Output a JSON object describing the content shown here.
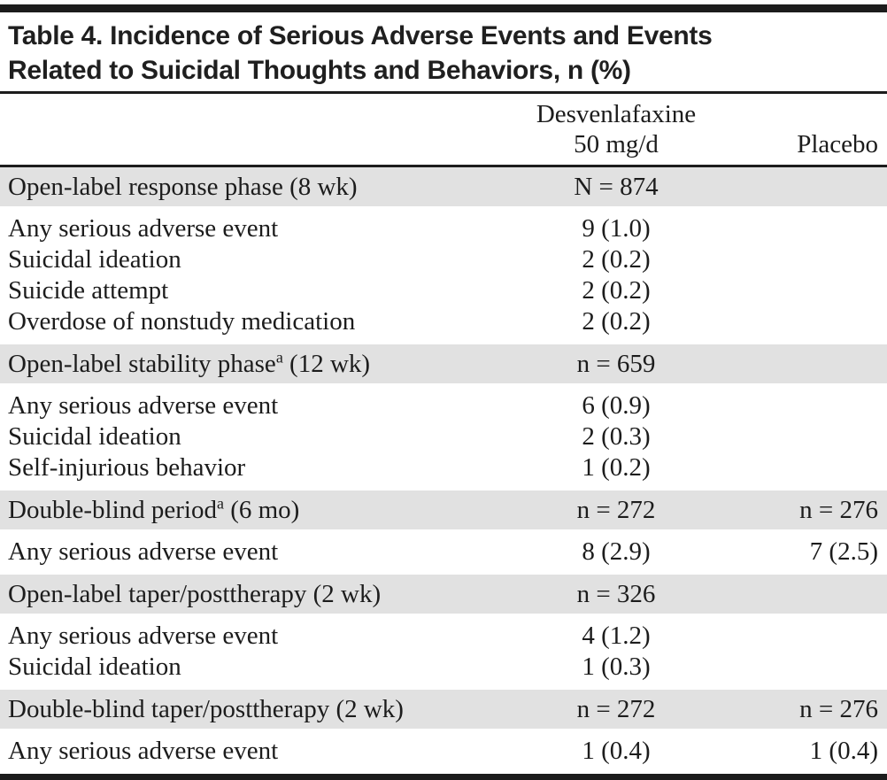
{
  "title": {
    "line1": "Table 4. Incidence of Serious Adverse Events and Events",
    "line2": "Related to Suicidal Thoughts and Behaviors, n (%)"
  },
  "columns": {
    "treatment_line1": "Desvenlafaxine",
    "treatment_line2": "50 mg/d",
    "placebo": "Placebo"
  },
  "colors": {
    "band_background": "#e1e1e1",
    "text": "#1c1c1c",
    "rule": "#1c1c1c",
    "page_background": "#ffffff"
  },
  "sections": [
    {
      "header": {
        "label": "Open-label response phase (8 wk)",
        "sup": "",
        "suffix": "",
        "desvenlafaxine": "N = 874",
        "placebo": ""
      },
      "rows": [
        {
          "label": "Any serious adverse event",
          "desvenlafaxine": "9 (1.0)",
          "placebo": ""
        },
        {
          "label": "Suicidal ideation",
          "desvenlafaxine": "2 (0.2)",
          "placebo": ""
        },
        {
          "label": "Suicide attempt",
          "desvenlafaxine": "2 (0.2)",
          "placebo": ""
        },
        {
          "label": "Overdose of nonstudy medication",
          "desvenlafaxine": "2 (0.2)",
          "placebo": ""
        }
      ]
    },
    {
      "header": {
        "label": "Open-label stability phase",
        "sup": "a",
        "suffix": " (12 wk)",
        "desvenlafaxine": "n = 659",
        "placebo": ""
      },
      "rows": [
        {
          "label": "Any serious adverse event",
          "desvenlafaxine": "6 (0.9)",
          "placebo": ""
        },
        {
          "label": "Suicidal ideation",
          "desvenlafaxine": "2 (0.3)",
          "placebo": ""
        },
        {
          "label": "Self-injurious behavior",
          "desvenlafaxine": "1 (0.2)",
          "placebo": ""
        }
      ]
    },
    {
      "header": {
        "label": "Double-blind period",
        "sup": "a",
        "suffix": " (6 mo)",
        "desvenlafaxine": "n = 272",
        "placebo": "n = 276"
      },
      "rows": [
        {
          "label": "Any serious adverse event",
          "desvenlafaxine": "8 (2.9)",
          "placebo": "7 (2.5)"
        }
      ]
    },
    {
      "header": {
        "label": "Open-label taper/posttherapy (2 wk)",
        "sup": "",
        "suffix": "",
        "desvenlafaxine": "n = 326",
        "placebo": ""
      },
      "rows": [
        {
          "label": "Any serious adverse event",
          "desvenlafaxine": "4 (1.2)",
          "placebo": ""
        },
        {
          "label": "Suicidal ideation",
          "desvenlafaxine": "1 (0.3)",
          "placebo": ""
        }
      ]
    },
    {
      "header": {
        "label": "Double-blind taper/posttherapy (2 wk)",
        "sup": "",
        "suffix": "",
        "desvenlafaxine": "n = 272",
        "placebo": "n = 276"
      },
      "rows": [
        {
          "label": "Any serious adverse event",
          "desvenlafaxine": "1 (0.4)",
          "placebo": "1 (0.4)"
        }
      ]
    }
  ]
}
